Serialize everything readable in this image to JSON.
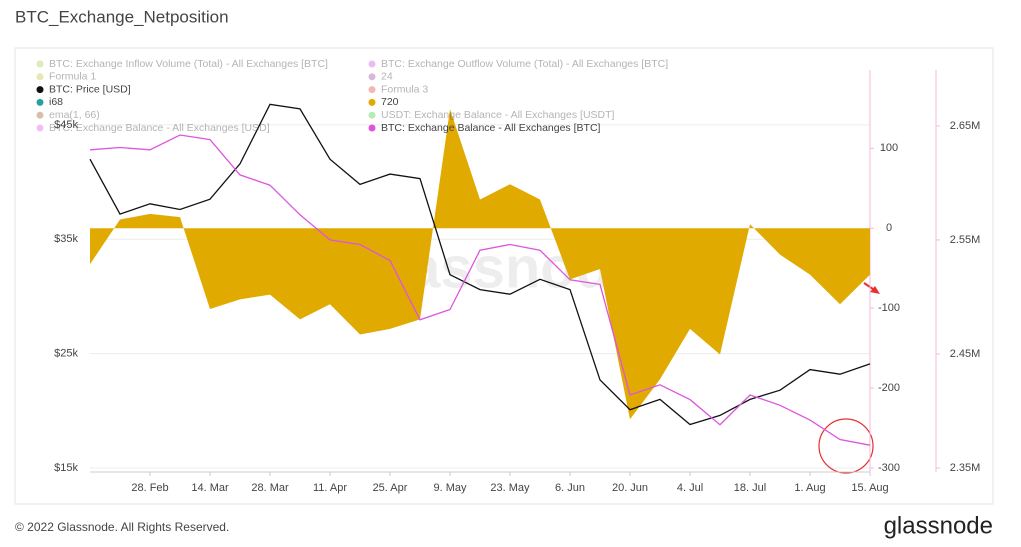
{
  "chart_data": {
    "type": "line",
    "title": "BTC_Exchange_Netposition",
    "watermark": "glassnode",
    "copyright": "© 2022 Glassnode. All Rights Reserved.",
    "brand": "glassnode",
    "x": [
      "14. Feb",
      "21. Feb",
      "28. Feb",
      "7. Mar",
      "14. Mar",
      "21. Mar",
      "28. Mar",
      "4. Apr",
      "11. Apr",
      "18. Apr",
      "25. Apr",
      "2. May",
      "9. May",
      "16. May",
      "23. May",
      "30. May",
      "6. Jun",
      "13. Jun",
      "20. Jun",
      "27. Jun",
      "4. Jul",
      "11. Jul",
      "18. Jul",
      "25. Jul",
      "1. Aug",
      "8. Aug",
      "15. Aug"
    ],
    "xlim": [
      "14. Feb",
      "15. Aug"
    ],
    "xticks": [
      "28. Feb",
      "14. Mar",
      "28. Mar",
      "11. Apr",
      "25. Apr",
      "9. May",
      "23. May",
      "6. Jun",
      "20. Jun",
      "4. Jul",
      "18. Jul",
      "1. Aug",
      "15. Aug"
    ],
    "ylim": [
      14650,
      49800
    ],
    "yticks": [
      {
        "value": 15000,
        "label": "$15k"
      },
      {
        "value": 25000,
        "label": "$25k"
      },
      {
        "value": 35000,
        "label": "$35k"
      },
      {
        "value": 45000,
        "label": "$45k"
      }
    ],
    "y2lim": [
      -305,
      198
    ],
    "y2ticks": [
      -300,
      -200,
      -100,
      0,
      100
    ],
    "y3lim": [
      2346500,
      2699000
    ],
    "y3ticks": [
      {
        "value": 2350000,
        "label": "2.35M"
      },
      {
        "value": 2450000,
        "label": "2.45M"
      },
      {
        "value": 2550000,
        "label": "2.55M"
      },
      {
        "value": 2650000,
        "label": "2.65M"
      }
    ],
    "grid": true,
    "series": [
      {
        "name": "BTC: Exchange Inflow Volume (Total) - All Exchanges [BTC]",
        "color": "#9acd32",
        "active": false
      },
      {
        "name": "BTC: Exchange Outflow Volume (Total) - All Exchanges [BTC]",
        "color": "#c040e0",
        "active": false
      },
      {
        "name": "Formula 1",
        "color": "#b5c020",
        "active": false
      },
      {
        "name": "24",
        "color": "#8e3a8e",
        "active": false
      },
      {
        "name": "BTC: Price [USD]",
        "color": "#111111",
        "active": true,
        "axis": "y",
        "style": "line",
        "values": [
          42000,
          37200,
          38100,
          37600,
          38500,
          41600,
          46800,
          46400,
          42000,
          39800,
          40700,
          40300,
          31900,
          30600,
          30200,
          31500,
          30600,
          22700,
          20100,
          21000,
          18800,
          19600,
          21000,
          21800,
          23600,
          23200,
          24100
        ]
      },
      {
        "name": "Formula 3",
        "color": "#d83a1e",
        "active": false
      },
      {
        "name": "i68",
        "color": "#2aa198",
        "active": true
      },
      {
        "name": "720",
        "color": "#e0aa00",
        "active": true,
        "axis": "y2",
        "style": "area",
        "values": [
          -45,
          11,
          18,
          14,
          -101,
          -89,
          -83,
          -114,
          -95,
          -133,
          -126,
          -114,
          149,
          36,
          55,
          36,
          -64,
          -51,
          -239,
          -189,
          -126,
          -158,
          5,
          -33,
          -58,
          -95,
          -58
        ]
      },
      {
        "name": "ema(1, 66)",
        "color": "#8b4513",
        "active": false
      },
      {
        "name": "USDT: Exchange Balance - All Exchanges [USDT]",
        "color": "#22cc22",
        "active": false
      },
      {
        "name": "BTC: Exchange Balance - All Exchanges [USD]",
        "color": "#e040e0",
        "active": false
      },
      {
        "name": "BTC: Exchange Balance - All Exchanges [BTC]",
        "color": "#dd55dd",
        "active": true,
        "axis": "y3",
        "style": "line",
        "values": [
          2629000,
          2631000,
          2629000,
          2642000,
          2638000,
          2607000,
          2598000,
          2572000,
          2550000,
          2546000,
          2532000,
          2480000,
          2489000,
          2541000,
          2546000,
          2541000,
          2515000,
          2511000,
          2414000,
          2423000,
          2410000,
          2388000,
          2414000,
          2405000,
          2392000,
          2375000,
          2370000
        ]
      }
    ]
  }
}
